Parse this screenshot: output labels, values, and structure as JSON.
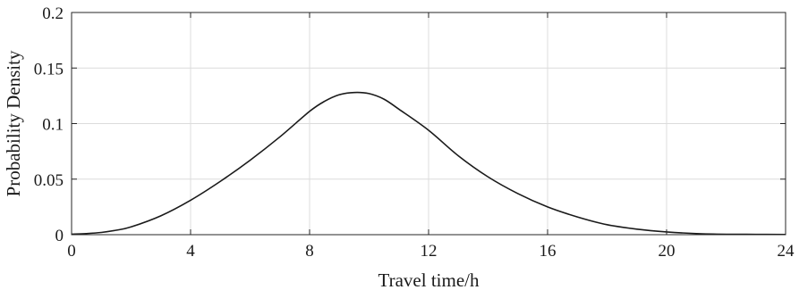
{
  "chart_data": {
    "type": "line",
    "title": "",
    "xlabel": "Travel time/h",
    "ylabel": "Probability Density",
    "xlim": [
      0,
      24
    ],
    "ylim": [
      0,
      0.2
    ],
    "xticks": [
      0,
      4,
      8,
      12,
      16,
      20,
      24
    ],
    "yticks": [
      0,
      0.05,
      0.1,
      0.15,
      0.2
    ],
    "xtick_labels": [
      "0",
      "4",
      "8",
      "12",
      "16",
      "20",
      "24"
    ],
    "ytick_labels": [
      "0",
      "0.05",
      "0.1",
      "0.15",
      "0.2"
    ],
    "grid": true,
    "legend": "none",
    "colors": {
      "line": "#1a1a1a",
      "grid": "#dcdcdc",
      "frame": "#262626"
    },
    "series": [
      {
        "x": [
          0,
          0.5,
          1,
          1.5,
          2,
          3,
          4,
          5,
          6,
          7,
          8,
          8.5,
          9,
          9.5,
          10,
          10.5,
          11,
          12,
          13,
          14,
          15,
          16,
          17,
          18,
          19,
          20,
          21,
          22,
          23,
          24
        ],
        "values": [
          0.0005,
          0.001,
          0.002,
          0.004,
          0.007,
          0.017,
          0.031,
          0.048,
          0.067,
          0.088,
          0.111,
          0.12,
          0.126,
          0.128,
          0.127,
          0.122,
          0.113,
          0.094,
          0.071,
          0.052,
          0.037,
          0.025,
          0.016,
          0.009,
          0.005,
          0.0025,
          0.001,
          0.0004,
          0.0003,
          0.0002
        ]
      }
    ]
  }
}
